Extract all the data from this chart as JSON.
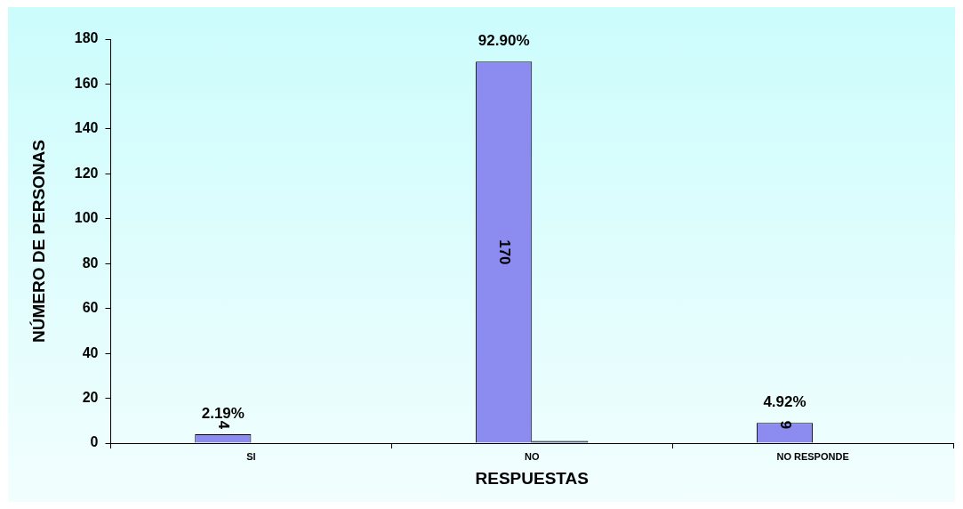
{
  "chart_data": {
    "type": "bar",
    "xlabel": "RESPUESTAS",
    "ylabel": "NÚMERO DE PERSONAS",
    "categories": [
      "SI",
      "NO",
      "NO RESPONDE"
    ],
    "series": [
      {
        "color": "#8c8cf0",
        "values": [
          4,
          170,
          9
        ],
        "data_labels": true
      },
      {
        "color": "#333366",
        "values": [
          null,
          1,
          null
        ]
      }
    ],
    "annotations": [
      {
        "text": "2.19%",
        "x": "SI",
        "y": 4
      },
      {
        "text": "92.90%",
        "x": "NO",
        "y": 170
      },
      {
        "text": "4.92%",
        "x": "NO RESPONDE",
        "y": 9
      }
    ],
    "ylim": [
      0,
      180
    ],
    "yticks": [
      0,
      20,
      40,
      60,
      80,
      100,
      120,
      140,
      160,
      180
    ],
    "grid": false,
    "legend": false
  }
}
